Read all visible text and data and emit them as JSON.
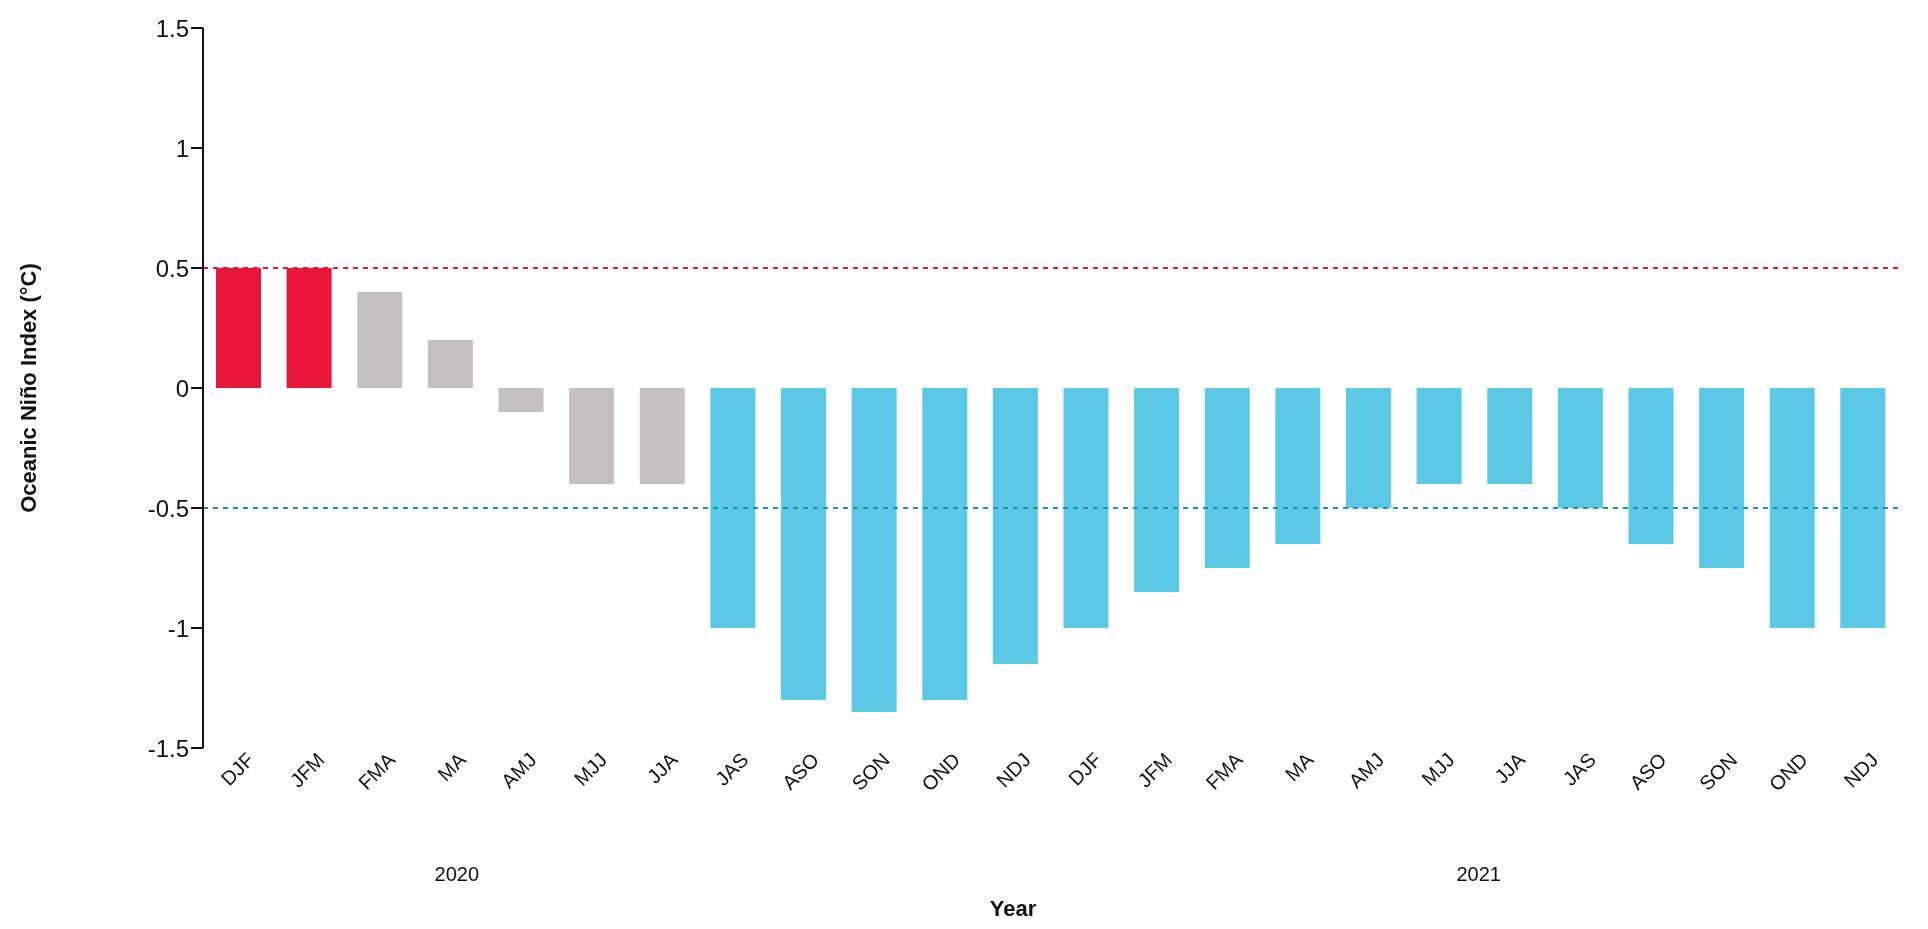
{
  "chart_data": {
    "type": "bar",
    "xlabel": "Year",
    "ylabel": "Oceanic Niño Index (°C)",
    "categories": [
      "DJF",
      "JFM",
      "FMA",
      "MA",
      "AMJ",
      "MJJ",
      "JJA",
      "JAS",
      "ASO",
      "SON",
      "OND",
      "NDJ",
      "DJF",
      "JFM",
      "FMA",
      "MA",
      "AMJ",
      "MJJ",
      "JJA",
      "JAS",
      "ASO",
      "SON",
      "OND",
      "NDJ"
    ],
    "values": [
      0.5,
      0.5,
      0.4,
      0.2,
      -0.1,
      -0.4,
      -0.4,
      -1.0,
      -1.3,
      -1.35,
      -1.3,
      -1.15,
      -1.0,
      -0.85,
      -0.75,
      -0.65,
      -0.5,
      -0.4,
      -0.4,
      -0.5,
      -0.65,
      -0.75,
      -1.0,
      -1.0
    ],
    "colors": [
      "#e8173a",
      "#e8173a",
      "#c4bfc0",
      "#c4bfc0",
      "#c4bfc0",
      "#c4bfc0",
      "#c4bfc0",
      "#5bc8e6",
      "#5bc8e6",
      "#5bc8e6",
      "#5bc8e6",
      "#5bc8e6",
      "#5bc8e6",
      "#5bc8e6",
      "#5bc8e6",
      "#5bc8e6",
      "#5bc8e6",
      "#5bc8e6",
      "#5bc8e6",
      "#5bc8e6",
      "#5bc8e6",
      "#5bc8e6",
      "#5bc8e6",
      "#5bc8e6"
    ],
    "ylim": [
      -1.5,
      1.5
    ],
    "yticks": [
      -1.5,
      -1,
      -0.5,
      0,
      0.5,
      1,
      1.5
    ],
    "grid": false,
    "legend": false,
    "ref_lines": [
      {
        "axis": "y",
        "value": 0.5,
        "color": "#e8173a",
        "line_style": "dashed"
      },
      {
        "axis": "y",
        "value": -0.5,
        "color": "#1b93b0",
        "line_style": "dashed"
      }
    ],
    "annotations": [
      "2020",
      "2021"
    ]
  }
}
